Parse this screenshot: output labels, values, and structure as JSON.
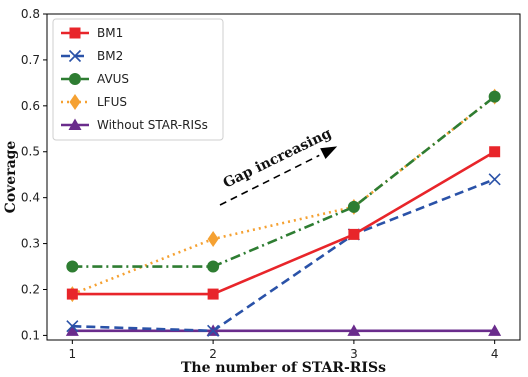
{
  "chart_data": {
    "type": "line",
    "xlabel": "The number of STAR-RISs",
    "ylabel": "Coverage",
    "x": [
      1,
      2,
      3,
      4
    ],
    "xticks": [
      "1",
      "2",
      "3",
      "4"
    ],
    "ylim": [
      0.09,
      0.8
    ],
    "yticks": [
      "0.1",
      "0.2",
      "0.3",
      "0.4",
      "0.5",
      "0.6",
      "0.7",
      "0.8"
    ],
    "grid": false,
    "legend_position": "top-left",
    "annotation": "Gap increasing",
    "series": [
      {
        "name": "BM1",
        "values": [
          0.19,
          0.19,
          0.32,
          0.5
        ],
        "color": "#e8252a",
        "style": "solid",
        "marker": "square"
      },
      {
        "name": "BM2",
        "values": [
          0.12,
          0.11,
          0.32,
          0.44
        ],
        "color": "#2a52a8",
        "style": "dashed",
        "marker": "x"
      },
      {
        "name": "AVUS",
        "values": [
          0.25,
          0.25,
          0.38,
          0.62
        ],
        "color": "#2e7d32",
        "style": "dashdot",
        "marker": "circle"
      },
      {
        "name": "LFUS",
        "values": [
          0.19,
          0.31,
          0.38,
          0.62
        ],
        "color": "#f5a132",
        "style": "dotted",
        "marker": "diamond"
      },
      {
        "name": "Without STAR-RISs",
        "values": [
          0.11,
          0.11,
          0.11,
          0.11
        ],
        "color": "#6a2c8c",
        "style": "solid",
        "marker": "triangle"
      }
    ]
  }
}
